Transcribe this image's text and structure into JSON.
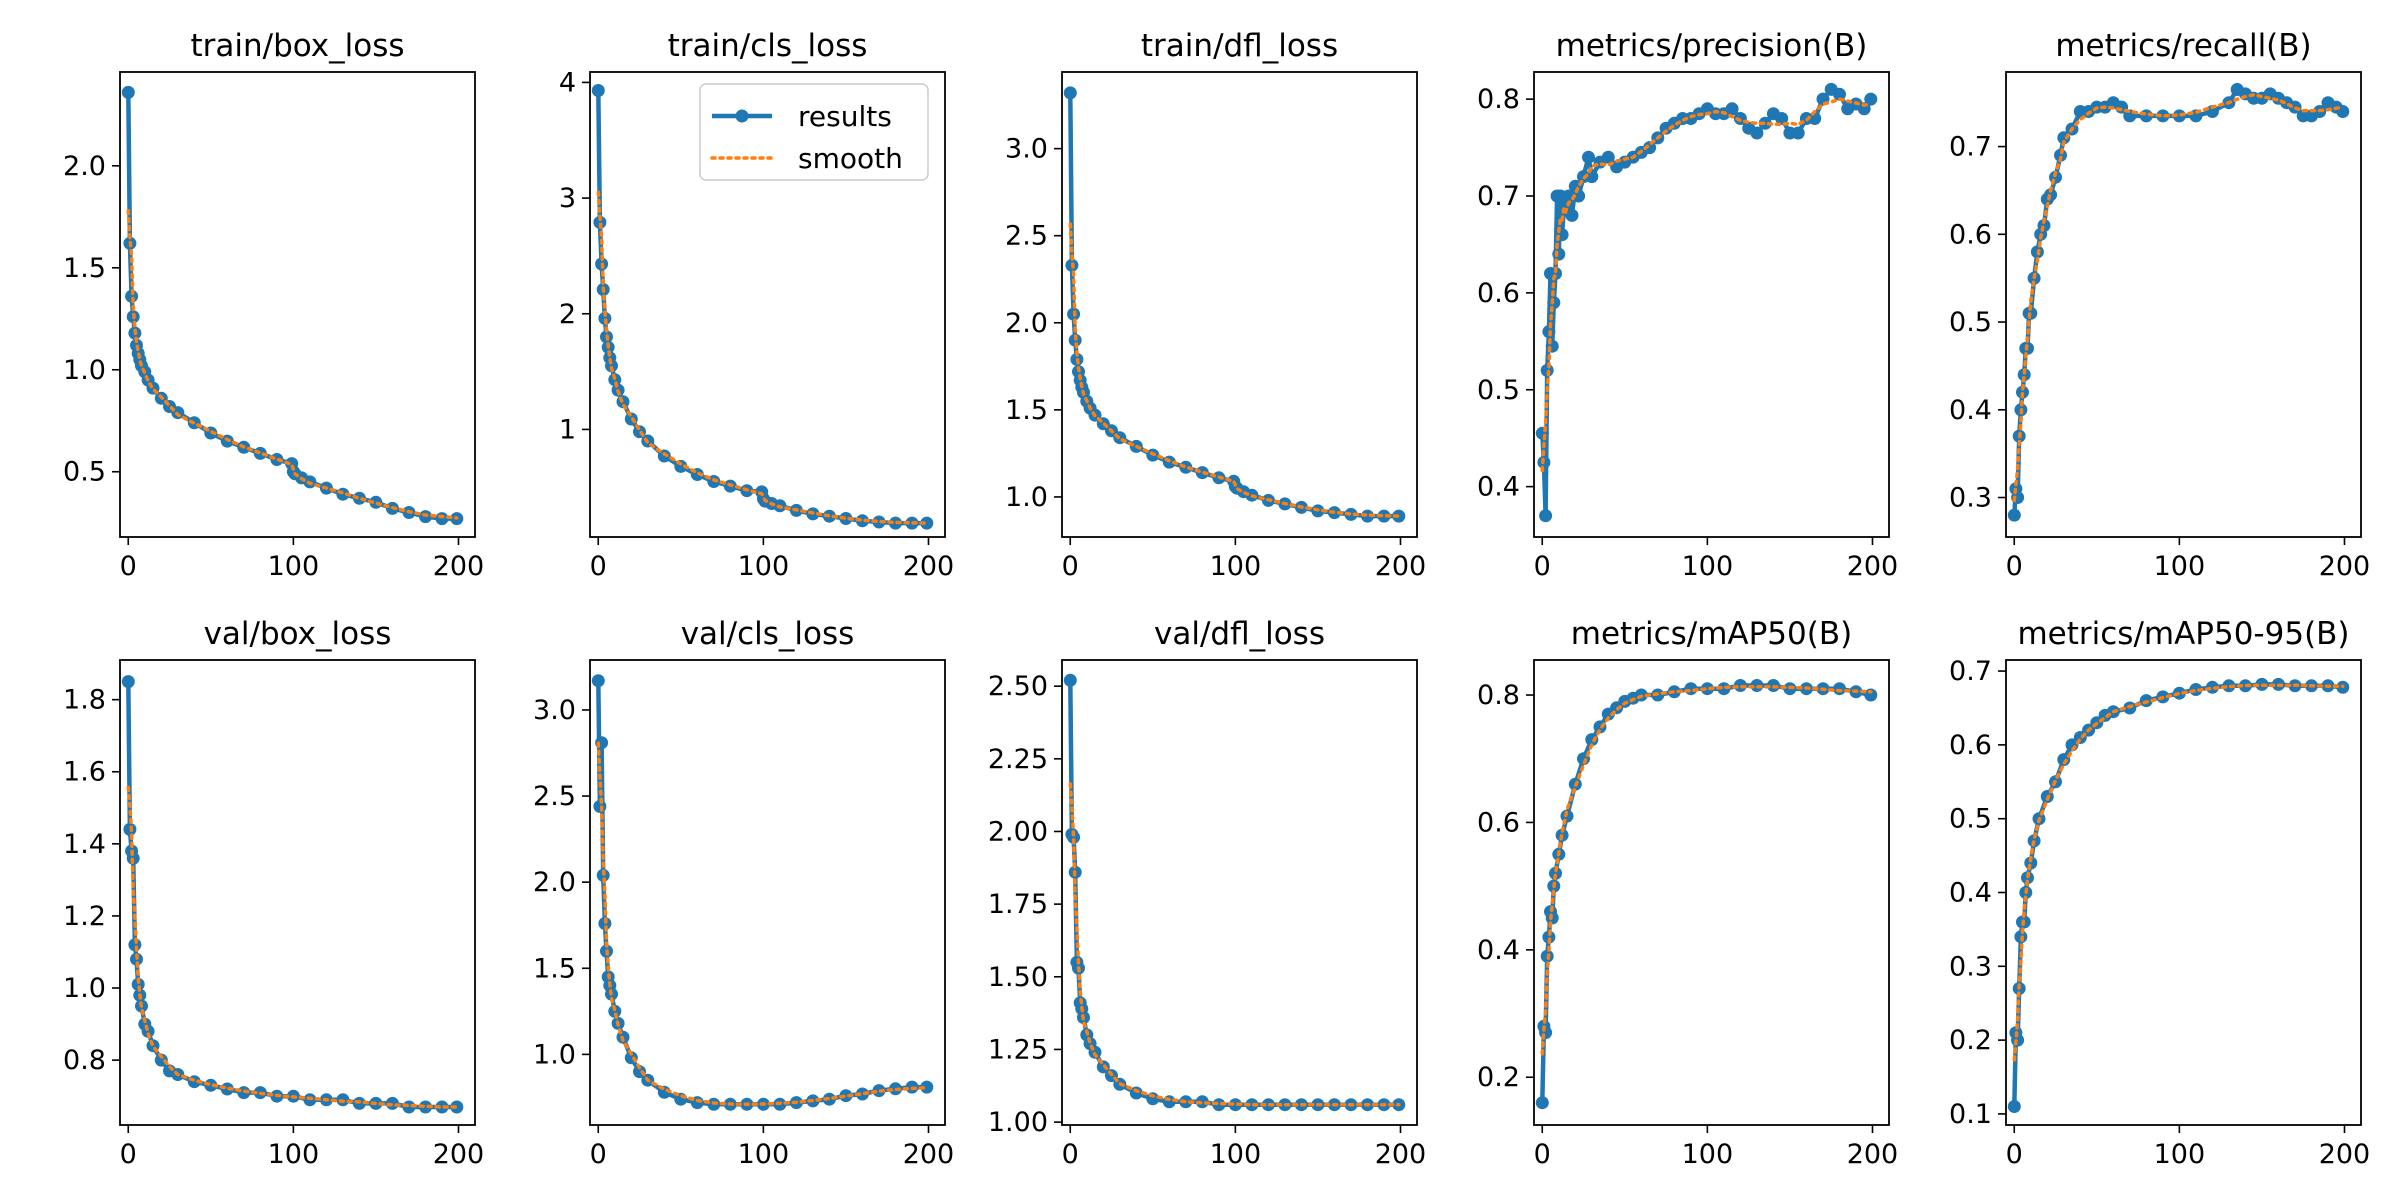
{
  "colors": {
    "results": "#1f77b4",
    "smooth": "#ff7f0e"
  },
  "chart_data": [
    {
      "type": "line",
      "title": "train/box_loss",
      "x": [
        0,
        1,
        2,
        3,
        4,
        5,
        6,
        7,
        8,
        10,
        12,
        15,
        20,
        25,
        30,
        40,
        50,
        60,
        70,
        80,
        90,
        99,
        100,
        101,
        105,
        110,
        120,
        130,
        140,
        150,
        160,
        170,
        180,
        190,
        199
      ],
      "series": [
        {
          "values": [
            2.36,
            1.62,
            1.36,
            1.26,
            1.18,
            1.12,
            1.08,
            1.05,
            1.02,
            0.99,
            0.95,
            0.91,
            0.86,
            0.82,
            0.79,
            0.74,
            0.69,
            0.65,
            0.62,
            0.59,
            0.56,
            0.54,
            0.5,
            0.49,
            0.47,
            0.45,
            0.42,
            0.39,
            0.37,
            0.35,
            0.32,
            0.3,
            0.28,
            0.27,
            0.27
          ]
        }
      ],
      "xlim": [
        -5,
        210
      ],
      "ylim": [
        0.18,
        2.46
      ],
      "yticks": [
        0.5,
        1.0,
        1.5,
        2.0
      ],
      "yfmt": 1
    },
    {
      "type": "line",
      "title": "train/cls_loss",
      "x": [
        0,
        1,
        2,
        3,
        4,
        5,
        6,
        7,
        8,
        10,
        12,
        15,
        20,
        25,
        30,
        40,
        50,
        60,
        70,
        80,
        90,
        99,
        100,
        101,
        105,
        110,
        120,
        130,
        140,
        150,
        160,
        170,
        180,
        190,
        199
      ],
      "series": [
        {
          "values": [
            3.93,
            2.79,
            2.43,
            2.21,
            1.96,
            1.8,
            1.71,
            1.62,
            1.55,
            1.43,
            1.34,
            1.24,
            1.09,
            0.98,
            0.9,
            0.77,
            0.68,
            0.61,
            0.55,
            0.51,
            0.47,
            0.46,
            0.4,
            0.38,
            0.36,
            0.34,
            0.3,
            0.27,
            0.25,
            0.23,
            0.21,
            0.2,
            0.19,
            0.19,
            0.19
          ]
        }
      ],
      "xlim": [
        -5,
        210
      ],
      "ylim": [
        0.07,
        4.09
      ],
      "yticks": [
        1,
        2,
        3,
        4
      ],
      "yfmt": 0,
      "legend": true
    },
    {
      "type": "line",
      "title": "train/dfl_loss",
      "x": [
        0,
        1,
        2,
        3,
        4,
        5,
        6,
        7,
        8,
        10,
        12,
        15,
        20,
        25,
        30,
        40,
        50,
        60,
        70,
        80,
        90,
        99,
        100,
        101,
        105,
        110,
        120,
        130,
        140,
        150,
        160,
        170,
        180,
        190,
        199
      ],
      "series": [
        {
          "values": [
            3.32,
            2.33,
            2.05,
            1.9,
            1.79,
            1.72,
            1.67,
            1.63,
            1.6,
            1.55,
            1.51,
            1.47,
            1.42,
            1.38,
            1.34,
            1.29,
            1.24,
            1.2,
            1.17,
            1.14,
            1.11,
            1.09,
            1.06,
            1.05,
            1.03,
            1.01,
            0.98,
            0.96,
            0.94,
            0.92,
            0.91,
            0.9,
            0.89,
            0.89,
            0.89
          ]
        }
      ],
      "xlim": [
        -5,
        210
      ],
      "ylim": [
        0.77,
        3.44
      ],
      "yticks": [
        1.0,
        1.5,
        2.0,
        2.5,
        3.0
      ],
      "yfmt": 1
    },
    {
      "type": "line",
      "title": "metrics/precision(B)",
      "x": [
        0,
        1,
        2,
        3,
        4,
        5,
        6,
        7,
        8,
        9,
        10,
        11,
        12,
        13,
        14,
        16,
        18,
        20,
        22,
        25,
        28,
        30,
        35,
        40,
        45,
        50,
        55,
        60,
        65,
        70,
        75,
        80,
        85,
        90,
        95,
        100,
        105,
        110,
        115,
        120,
        125,
        130,
        135,
        140,
        145,
        150,
        155,
        160,
        165,
        170,
        175,
        180,
        185,
        190,
        195,
        199
      ],
      "series": [
        {
          "values": [
            0.455,
            0.425,
            0.37,
            0.52,
            0.56,
            0.62,
            0.545,
            0.59,
            0.62,
            0.7,
            0.64,
            0.7,
            0.66,
            0.685,
            0.69,
            0.7,
            0.68,
            0.71,
            0.7,
            0.72,
            0.74,
            0.72,
            0.735,
            0.74,
            0.73,
            0.735,
            0.74,
            0.745,
            0.75,
            0.76,
            0.77,
            0.775,
            0.78,
            0.78,
            0.785,
            0.79,
            0.785,
            0.785,
            0.79,
            0.78,
            0.77,
            0.765,
            0.775,
            0.785,
            0.78,
            0.765,
            0.765,
            0.78,
            0.78,
            0.8,
            0.81,
            0.805,
            0.79,
            0.795,
            0.79,
            0.8
          ]
        }
      ],
      "xlim": [
        -5,
        210
      ],
      "ylim": [
        0.348,
        0.828
      ],
      "yticks": [
        0.4,
        0.5,
        0.6,
        0.7,
        0.8
      ],
      "yfmt": 1
    },
    {
      "type": "line",
      "title": "metrics/recall(B)",
      "x": [
        0,
        1,
        2,
        3,
        4,
        5,
        6,
        7,
        8,
        9,
        10,
        12,
        14,
        16,
        18,
        20,
        22,
        25,
        28,
        30,
        35,
        40,
        45,
        50,
        55,
        60,
        65,
        70,
        80,
        90,
        100,
        110,
        120,
        130,
        135,
        140,
        145,
        150,
        155,
        160,
        165,
        170,
        175,
        180,
        185,
        190,
        195,
        199
      ],
      "series": [
        {
          "values": [
            0.28,
            0.31,
            0.3,
            0.37,
            0.4,
            0.42,
            0.44,
            0.47,
            0.47,
            0.51,
            0.51,
            0.55,
            0.58,
            0.6,
            0.61,
            0.64,
            0.645,
            0.665,
            0.69,
            0.71,
            0.72,
            0.74,
            0.74,
            0.745,
            0.745,
            0.75,
            0.745,
            0.735,
            0.735,
            0.735,
            0.735,
            0.735,
            0.74,
            0.75,
            0.765,
            0.76,
            0.755,
            0.755,
            0.76,
            0.755,
            0.75,
            0.745,
            0.735,
            0.735,
            0.74,
            0.75,
            0.745,
            0.74
          ]
        }
      ],
      "xlim": [
        -5,
        210
      ],
      "ylim": [
        0.255,
        0.785
      ],
      "yticks": [
        0.3,
        0.4,
        0.5,
        0.6,
        0.7
      ],
      "yfmt": 1
    },
    {
      "type": "line",
      "title": "val/box_loss",
      "x": [
        0,
        1,
        2,
        3,
        4,
        5,
        6,
        7,
        8,
        10,
        12,
        15,
        20,
        25,
        30,
        40,
        50,
        60,
        70,
        80,
        90,
        100,
        110,
        120,
        130,
        140,
        150,
        160,
        170,
        180,
        190,
        199
      ],
      "series": [
        {
          "values": [
            1.85,
            1.44,
            1.38,
            1.36,
            1.12,
            1.08,
            1.01,
            0.98,
            0.95,
            0.9,
            0.88,
            0.84,
            0.8,
            0.77,
            0.76,
            0.74,
            0.73,
            0.72,
            0.71,
            0.71,
            0.7,
            0.7,
            0.69,
            0.69,
            0.69,
            0.68,
            0.68,
            0.68,
            0.67,
            0.67,
            0.67,
            0.67
          ]
        }
      ],
      "xlim": [
        -5,
        210
      ],
      "ylim": [
        0.62,
        1.91
      ],
      "yticks": [
        0.8,
        1.0,
        1.2,
        1.4,
        1.6,
        1.8
      ],
      "yfmt": 1
    },
    {
      "type": "line",
      "title": "val/cls_loss",
      "x": [
        0,
        1,
        2,
        3,
        4,
        5,
        6,
        7,
        8,
        10,
        12,
        15,
        20,
        25,
        30,
        40,
        50,
        60,
        70,
        80,
        90,
        100,
        110,
        120,
        130,
        140,
        150,
        160,
        170,
        180,
        190,
        199
      ],
      "series": [
        {
          "values": [
            3.17,
            2.44,
            2.81,
            2.04,
            1.76,
            1.6,
            1.45,
            1.4,
            1.35,
            1.25,
            1.18,
            1.1,
            0.98,
            0.9,
            0.85,
            0.78,
            0.74,
            0.72,
            0.71,
            0.71,
            0.71,
            0.71,
            0.71,
            0.72,
            0.73,
            0.74,
            0.76,
            0.77,
            0.79,
            0.8,
            0.81,
            0.81
          ]
        }
      ],
      "xlim": [
        -5,
        210
      ],
      "ylim": [
        0.59,
        3.29
      ],
      "yticks": [
        1.0,
        1.5,
        2.0,
        2.5,
        3.0
      ],
      "yfmt": 1
    },
    {
      "type": "line",
      "title": "val/dfl_loss",
      "x": [
        0,
        1,
        2,
        3,
        4,
        5,
        6,
        7,
        8,
        10,
        12,
        15,
        20,
        25,
        30,
        40,
        50,
        60,
        70,
        80,
        90,
        100,
        110,
        120,
        130,
        140,
        150,
        160,
        170,
        180,
        190,
        199
      ],
      "series": [
        {
          "values": [
            2.52,
            1.99,
            1.98,
            1.86,
            1.55,
            1.53,
            1.41,
            1.39,
            1.36,
            1.3,
            1.27,
            1.24,
            1.19,
            1.16,
            1.13,
            1.1,
            1.08,
            1.07,
            1.07,
            1.07,
            1.06,
            1.06,
            1.06,
            1.06,
            1.06,
            1.06,
            1.06,
            1.06,
            1.06,
            1.06,
            1.06,
            1.06
          ]
        }
      ],
      "xlim": [
        -5,
        210
      ],
      "ylim": [
        0.99,
        2.59
      ],
      "yticks": [
        1.0,
        1.25,
        1.5,
        1.75,
        2.0,
        2.25,
        2.5
      ],
      "yfmt": 2
    },
    {
      "type": "line",
      "title": "metrics/mAP50(B)",
      "x": [
        0,
        1,
        2,
        3,
        4,
        5,
        6,
        7,
        8,
        10,
        12,
        15,
        20,
        25,
        30,
        35,
        40,
        45,
        50,
        55,
        60,
        70,
        80,
        90,
        100,
        110,
        120,
        130,
        140,
        150,
        160,
        170,
        180,
        190,
        199
      ],
      "series": [
        {
          "values": [
            0.16,
            0.28,
            0.27,
            0.39,
            0.42,
            0.46,
            0.45,
            0.5,
            0.52,
            0.55,
            0.58,
            0.61,
            0.66,
            0.7,
            0.73,
            0.75,
            0.77,
            0.78,
            0.79,
            0.795,
            0.8,
            0.8,
            0.805,
            0.81,
            0.81,
            0.81,
            0.815,
            0.815,
            0.815,
            0.81,
            0.81,
            0.81,
            0.81,
            0.805,
            0.8
          ]
        }
      ],
      "xlim": [
        -5,
        210
      ],
      "ylim": [
        0.125,
        0.855
      ],
      "yticks": [
        0.2,
        0.4,
        0.6,
        0.8
      ],
      "yfmt": 1
    },
    {
      "type": "line",
      "title": "metrics/mAP50-95(B)",
      "x": [
        0,
        1,
        2,
        3,
        4,
        5,
        6,
        7,
        8,
        10,
        12,
        15,
        20,
        25,
        30,
        35,
        40,
        45,
        50,
        55,
        60,
        70,
        80,
        90,
        100,
        110,
        120,
        130,
        140,
        150,
        160,
        170,
        180,
        190,
        199
      ],
      "series": [
        {
          "values": [
            0.11,
            0.21,
            0.2,
            0.27,
            0.34,
            0.36,
            0.36,
            0.4,
            0.42,
            0.44,
            0.47,
            0.5,
            0.53,
            0.55,
            0.58,
            0.6,
            0.61,
            0.62,
            0.63,
            0.64,
            0.645,
            0.65,
            0.66,
            0.665,
            0.67,
            0.675,
            0.678,
            0.68,
            0.68,
            0.682,
            0.682,
            0.68,
            0.68,
            0.68,
            0.678
          ]
        }
      ],
      "xlim": [
        -5,
        210
      ],
      "ylim": [
        0.085,
        0.715
      ],
      "yticks": [
        0.1,
        0.2,
        0.3,
        0.4,
        0.5,
        0.6,
        0.7
      ],
      "yfmt": 1
    }
  ],
  "xticks": [
    0,
    100,
    200
  ],
  "legend": {
    "entries": [
      "results",
      "smooth"
    ]
  }
}
